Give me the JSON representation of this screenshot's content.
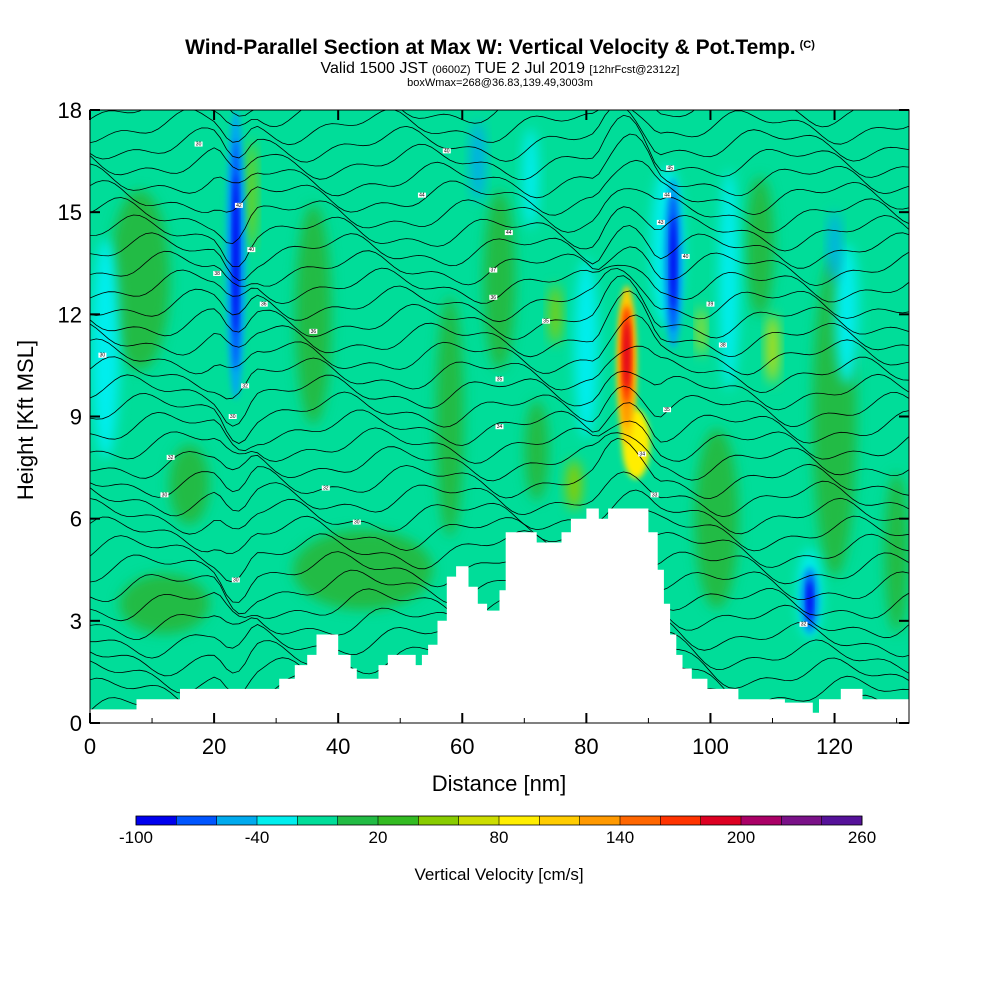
{
  "chart_data": {
    "type": "heatmap",
    "title": "Wind-Parallel Section at Max W: Vertical Velocity & Pot.Temp.",
    "title_mark": "(C)",
    "subtitle_valid": "Valid 1500 JST",
    "subtitle_utc": "(0600Z)",
    "subtitle_date": "TUE 2 Jul 2019",
    "subtitle_fcst": "[12hrFcst@2312z]",
    "subtitle_box": "boxWmax=268@36.83,139.49,3003m",
    "xlabel": "Distance [nm]",
    "ylabel": "Height [Kft MSL]",
    "xlim": [
      0,
      132
    ],
    "ylim": [
      0,
      18
    ],
    "x_ticks": [
      "0",
      "20",
      "40",
      "60",
      "80",
      "100",
      "120"
    ],
    "y_ticks": [
      "0",
      "3",
      "6",
      "9",
      "12",
      "15",
      "18"
    ],
    "colorbar": {
      "label": "Vertical Velocity [cm/s]",
      "tick_labels": [
        "-100",
        "-40",
        "20",
        "80",
        "140",
        "200",
        "260"
      ],
      "colors": [
        "#0000ee",
        "#0055ff",
        "#00aaee",
        "#00eeee",
        "#00dd99",
        "#22bb44",
        "#33bb22",
        "#88cc00",
        "#ccdd00",
        "#ffee00",
        "#ffcc00",
        "#ff9900",
        "#ff6600",
        "#ff3300",
        "#dd0022",
        "#aa0066",
        "#7a1188",
        "#551199"
      ]
    },
    "features": {
      "updraft_max": {
        "x_nm": 86.5,
        "z_kft": [
          7.5,
          13.5
        ]
      },
      "downdrafts": [
        {
          "x_nm": 23.5,
          "z_kft": [
            9.5,
            18
          ]
        },
        {
          "x_nm": 94,
          "z_kft": [
            11,
            16
          ]
        },
        {
          "x_nm": 116,
          "z_kft": [
            2.6,
            4.6
          ]
        }
      ]
    },
    "terrain_kft": [
      [
        0,
        0.4
      ],
      [
        7.5,
        0.4
      ],
      [
        7.5,
        0.7
      ],
      [
        14.5,
        0.7
      ],
      [
        14.5,
        1.0
      ],
      [
        30.5,
        1.0
      ],
      [
        30.5,
        1.3
      ],
      [
        33,
        1.3
      ],
      [
        33,
        1.7
      ],
      [
        35,
        1.7
      ],
      [
        35,
        2.0
      ],
      [
        36.5,
        2.0
      ],
      [
        36.5,
        2.6
      ],
      [
        40,
        2.6
      ],
      [
        40,
        2.0
      ],
      [
        42,
        2.0
      ],
      [
        42,
        1.6
      ],
      [
        43,
        1.6
      ],
      [
        43,
        1.3
      ],
      [
        46.5,
        1.3
      ],
      [
        46.5,
        1.7
      ],
      [
        48,
        1.7
      ],
      [
        48,
        2.0
      ],
      [
        52.5,
        2.0
      ],
      [
        52.5,
        1.7
      ],
      [
        53.5,
        1.7
      ],
      [
        53.5,
        2.0
      ],
      [
        54.5,
        2.0
      ],
      [
        54.5,
        2.3
      ],
      [
        56,
        2.3
      ],
      [
        56,
        3.0
      ],
      [
        57.5,
        3.0
      ],
      [
        57.5,
        4.3
      ],
      [
        59,
        4.3
      ],
      [
        59,
        4.6
      ],
      [
        61,
        4.6
      ],
      [
        61,
        4.0
      ],
      [
        62.5,
        4.0
      ],
      [
        62.5,
        3.5
      ],
      [
        64,
        3.5
      ],
      [
        64,
        3.3
      ],
      [
        66,
        3.3
      ],
      [
        66,
        3.9
      ],
      [
        67,
        3.9
      ],
      [
        67,
        5.6
      ],
      [
        72,
        5.6
      ],
      [
        72,
        5.3
      ],
      [
        76,
        5.3
      ],
      [
        76,
        5.6
      ],
      [
        77.5,
        5.6
      ],
      [
        77.5,
        6.0
      ],
      [
        80,
        6.0
      ],
      [
        80,
        6.3
      ],
      [
        82,
        6.3
      ],
      [
        82,
        6.0
      ],
      [
        83.5,
        6.0
      ],
      [
        83.5,
        6.3
      ],
      [
        90,
        6.3
      ],
      [
        90,
        5.6
      ],
      [
        91.5,
        5.6
      ],
      [
        91.5,
        4.5
      ],
      [
        92.5,
        4.5
      ],
      [
        92.5,
        3.5
      ],
      [
        93.5,
        3.5
      ],
      [
        93.5,
        2.6
      ],
      [
        94.5,
        2.6
      ],
      [
        94.5,
        2.0
      ],
      [
        95.5,
        2.0
      ],
      [
        95.5,
        1.6
      ],
      [
        97,
        1.6
      ],
      [
        97,
        1.3
      ],
      [
        99.5,
        1.3
      ],
      [
        99.5,
        1.0
      ],
      [
        104.5,
        1.0
      ],
      [
        104.5,
        0.7
      ],
      [
        112,
        0.7
      ],
      [
        112,
        0.6
      ],
      [
        116.5,
        0.6
      ],
      [
        116.5,
        0.3
      ],
      [
        117.5,
        0.3
      ],
      [
        117.5,
        0.7
      ],
      [
        121,
        0.7
      ],
      [
        121,
        1.0
      ],
      [
        124.5,
        1.0
      ],
      [
        124.5,
        0.7
      ],
      [
        132,
        0.7
      ]
    ],
    "theta_labels": [
      {
        "x": 17.5,
        "z": 17.0,
        "text": "30"
      },
      {
        "x": 57.5,
        "z": 16.8,
        "text": "40"
      },
      {
        "x": 53.5,
        "z": 15.5,
        "text": "44"
      },
      {
        "x": 24,
        "z": 15.2,
        "text": "42"
      },
      {
        "x": 67.5,
        "z": 14.4,
        "text": "44"
      },
      {
        "x": 26,
        "z": 13.9,
        "text": "40"
      },
      {
        "x": 20.5,
        "z": 13.2,
        "text": "38"
      },
      {
        "x": 65,
        "z": 13.3,
        "text": "37"
      },
      {
        "x": 28,
        "z": 12.3,
        "text": "36"
      },
      {
        "x": 65,
        "z": 12.5,
        "text": "36"
      },
      {
        "x": 36,
        "z": 11.5,
        "text": "36"
      },
      {
        "x": 73.5,
        "z": 11.8,
        "text": "35"
      },
      {
        "x": 2,
        "z": 10.8,
        "text": "30"
      },
      {
        "x": 66,
        "z": 10.1,
        "text": "35"
      },
      {
        "x": 25,
        "z": 9.9,
        "text": "32"
      },
      {
        "x": 23,
        "z": 9.0,
        "text": "30"
      },
      {
        "x": 66,
        "z": 8.7,
        "text": "34"
      },
      {
        "x": 13,
        "z": 7.8,
        "text": "32"
      },
      {
        "x": 12,
        "z": 6.7,
        "text": "30"
      },
      {
        "x": 38,
        "z": 6.9,
        "text": "32"
      },
      {
        "x": 43,
        "z": 5.9,
        "text": "30"
      },
      {
        "x": 23.5,
        "z": 4.2,
        "text": "30"
      },
      {
        "x": 93.5,
        "z": 16.3,
        "text": "45"
      },
      {
        "x": 93,
        "z": 15.5,
        "text": "44"
      },
      {
        "x": 92,
        "z": 14.7,
        "text": "43"
      },
      {
        "x": 96,
        "z": 13.7,
        "text": "40"
      },
      {
        "x": 100,
        "z": 12.3,
        "text": "39"
      },
      {
        "x": 102,
        "z": 11.1,
        "text": "38"
      },
      {
        "x": 93,
        "z": 9.2,
        "text": "35"
      },
      {
        "x": 89,
        "z": 7.9,
        "text": "34"
      },
      {
        "x": 91,
        "z": 6.7,
        "text": "33"
      },
      {
        "x": 115,
        "z": 2.9,
        "text": "32"
      }
    ]
  }
}
